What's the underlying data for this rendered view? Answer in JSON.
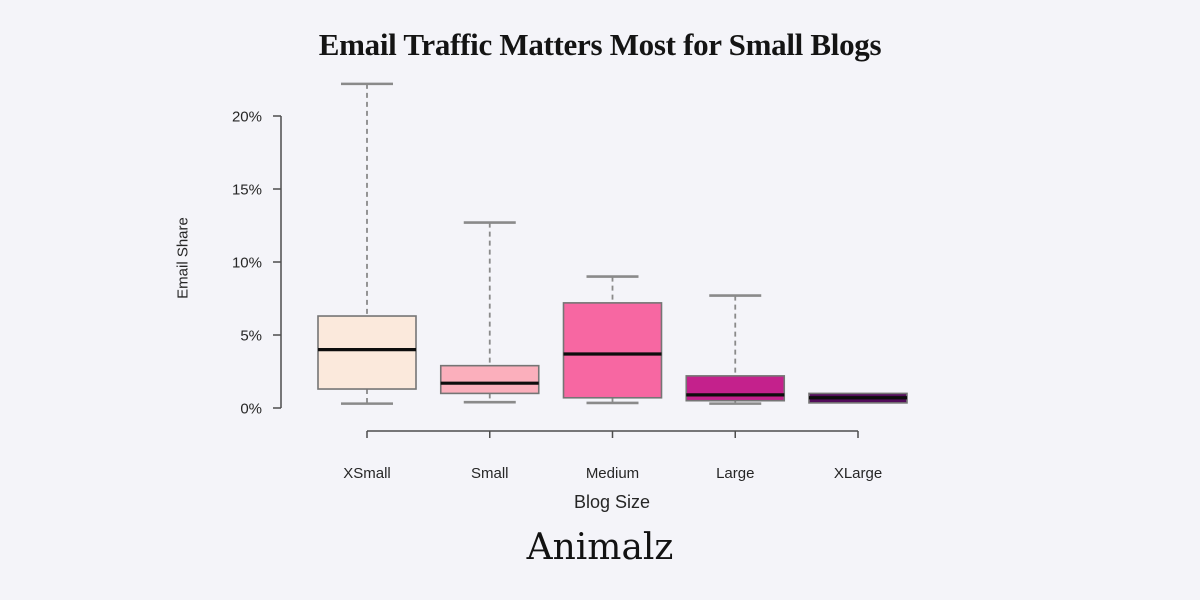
{
  "page": {
    "background": "#f4f4f9"
  },
  "chart_data": {
    "type": "boxplot",
    "title": "Email Traffic Matters Most for Small Blogs",
    "xlabel": "Blog Size",
    "ylabel": "Email Share",
    "unit": "%",
    "categories": [
      "XSmall",
      "Small",
      "Medium",
      "Large",
      "XLarge"
    ],
    "y_axis": {
      "range_pct": [
        0,
        20
      ],
      "ticks_pct": [
        0,
        5,
        10,
        15,
        20
      ],
      "tick_labels": [
        "0%",
        "5%",
        "10%",
        "15%",
        "20%"
      ]
    },
    "grid": false,
    "legend": false,
    "series": [
      {
        "category": "XSmall",
        "min": 0.3,
        "q1": 1.3,
        "median": 4.0,
        "q3": 6.3,
        "max": 22.2,
        "fill": "#fbe9dc"
      },
      {
        "category": "Small",
        "min": 0.4,
        "q1": 1.0,
        "median": 1.7,
        "q3": 2.9,
        "max": 12.7,
        "fill": "#fbafbc"
      },
      {
        "category": "Medium",
        "min": 0.35,
        "q1": 0.7,
        "median": 3.7,
        "q3": 7.2,
        "max": 9.0,
        "fill": "#f767a2"
      },
      {
        "category": "Large",
        "min": 0.3,
        "q1": 0.5,
        "median": 0.9,
        "q3": 2.2,
        "max": 7.7,
        "fill": "#c4218c"
      },
      {
        "category": "XLarge",
        "min": 0.35,
        "q1": 0.35,
        "median": 0.7,
        "q3": 1.0,
        "max": 1.0,
        "fill": "#530d5b"
      }
    ],
    "colors": {
      "axis": "#4d4d4d",
      "tick_text": "#262626",
      "whisker": "#8a8a8a",
      "box_border": "#757575",
      "median": "#0d0d0d"
    }
  },
  "footer": {
    "logo_text": "Animalz"
  }
}
